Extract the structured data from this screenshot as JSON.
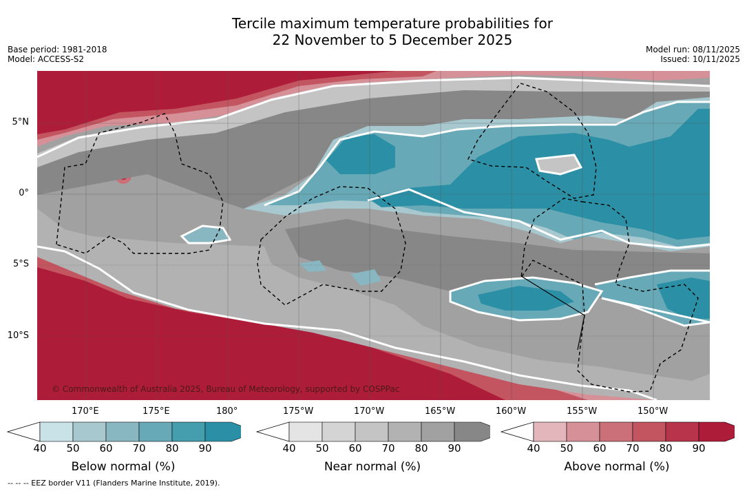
{
  "title": {
    "line1": "Tercile maximum temperature probabilities for",
    "line2": "22 November to 5 December 2025"
  },
  "meta_left": {
    "base_period": "Base period: 1981-2018",
    "model": "Model: ACCESS-S2"
  },
  "meta_right": {
    "model_run": "Model run: 08/11/2025",
    "issued": "Issued: 10/11/2025"
  },
  "map": {
    "lat_labels": [
      "5°N",
      "0°",
      "5°S",
      "10°S"
    ],
    "lon_labels": [
      "170°E",
      "175°E",
      "180°",
      "175°W",
      "170°W",
      "165°W",
      "160°W",
      "155°W",
      "150°W"
    ],
    "copyright": "© Commonwealth of Australia 2025, Bureau of Meteorology, supported by COSPPac"
  },
  "colorbars": [
    {
      "label": "Below normal (%)",
      "ticks": [
        "40",
        "50",
        "60",
        "70",
        "80",
        "90"
      ],
      "colors": [
        "#c8e2e8",
        "#a7c8cf",
        "#88b6c1",
        "#68a9b7",
        "#459ead",
        "#2b8fa5"
      ]
    },
    {
      "label": "Near normal (%)",
      "ticks": [
        "40",
        "50",
        "60",
        "70",
        "80",
        "90"
      ],
      "colors": [
        "#e4e4e4",
        "#d4d4d4",
        "#c4c4c4",
        "#b2b2b2",
        "#a1a1a1",
        "#878787"
      ]
    },
    {
      "label": "Above normal (%)",
      "ticks": [
        "40",
        "50",
        "60",
        "70",
        "80",
        "90"
      ],
      "colors": [
        "#e3b6bb",
        "#d69198",
        "#cb7079",
        "#c35560",
        "#b8344a",
        "#ad1c38"
      ]
    }
  ],
  "legend_note": "--  --  -- EEZ border V11 (Flanders Marine Institute, 2019)."
}
